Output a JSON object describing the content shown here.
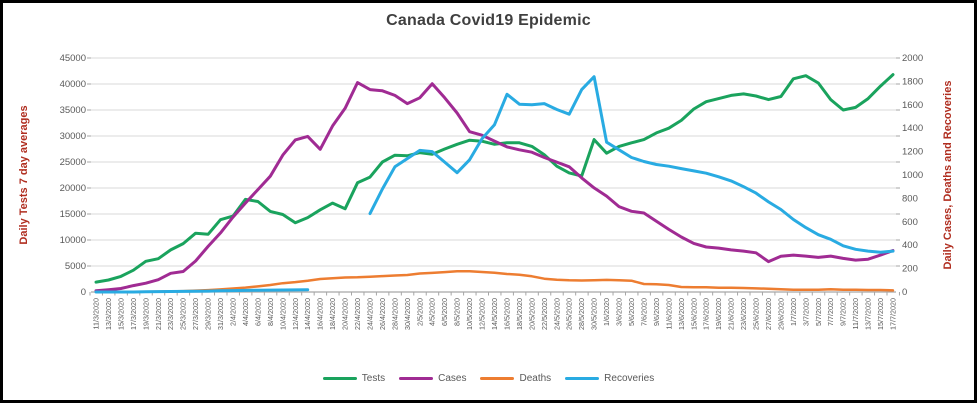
{
  "title": "Canada Covid19 Epidemic",
  "colors": {
    "title_text": "#3f3f3f",
    "axis_title_text": "#b02e20",
    "tick_label_text": "#595959",
    "gridline": "#d9d9d9",
    "axis_line": "#a6a6a6",
    "border": "#000000",
    "background": "#ffffff"
  },
  "chart_data": {
    "type": "line",
    "title": "Canada Covid19 Epidemic",
    "grid": true,
    "legend_position": "bottom",
    "left_axis": {
      "label": "Daily Tests 7 day averages",
      "min": 0,
      "max": 45000,
      "tick_step": 5000,
      "ticks": [
        "0",
        "5000",
        "10000",
        "15000",
        "20000",
        "25000",
        "30000",
        "35000",
        "40000",
        "45000"
      ]
    },
    "right_axis": {
      "label": "Daily Cases, Deaths and Recoveries",
      "min": 0,
      "max": 2000,
      "tick_step": 200,
      "ticks": [
        "0",
        "200",
        "400",
        "600",
        "800",
        "1000",
        "1200",
        "1400",
        "1600",
        "1800",
        "2000"
      ]
    },
    "x_labels": [
      "11/3/2020",
      "13/3/2020",
      "15/3/2020",
      "17/3/2020",
      "19/3/2020",
      "21/3/2020",
      "23/3/2020",
      "25/3/2020",
      "27/3/2020",
      "29/3/2020",
      "31/3/2020",
      "2/4/2020",
      "4/4/2020",
      "6/4/2020",
      "8/4/2020",
      "10/4/2020",
      "12/4/2020",
      "14/4/2020",
      "16/4/2020",
      "18/4/2020",
      "20/4/2020",
      "22/4/2020",
      "24/4/2020",
      "26/4/2020",
      "28/4/2020",
      "30/4/2020",
      "2/5/2020",
      "4/5/2020",
      "6/5/2020",
      "8/5/2020",
      "10/5/2020",
      "12/5/2020",
      "14/5/2020",
      "16/5/2020",
      "18/5/2020",
      "20/5/2020",
      "22/5/2020",
      "24/5/2020",
      "26/5/2020",
      "28/5/2020",
      "30/5/2020",
      "1/6/2020",
      "3/6/2020",
      "5/6/2020",
      "7/6/2020",
      "9/6/2020",
      "11/6/2020",
      "13/6/2020",
      "15/6/2020",
      "17/6/2020",
      "19/6/2020",
      "21/6/2020",
      "23/6/2020",
      "25/6/2020",
      "27/6/2020",
      "29/6/2020",
      "1/7/2020",
      "3/7/2020",
      "5/7/2020",
      "7/7/2020",
      "9/7/2020",
      "11/7/2020",
      "13/7/2020",
      "15/7/2020",
      "17/7/2020"
    ],
    "series": [
      {
        "name": "Tests",
        "axis": "left",
        "color": "#1aa35d",
        "width": 3,
        "values": [
          1900,
          2300,
          3000,
          4200,
          5900,
          6400,
          8100,
          9300,
          11300,
          11100,
          13900,
          14600,
          17800,
          17400,
          15500,
          14900,
          13300,
          14300,
          15800,
          17100,
          16000,
          21000,
          22100,
          25000,
          26300,
          26200,
          26800,
          26500,
          27500,
          28400,
          29200,
          29000,
          28400,
          28700,
          28700,
          28000,
          26400,
          24200,
          22900,
          22300,
          29300,
          26700,
          28000,
          28700,
          29300,
          30600,
          31500,
          33000,
          35200,
          36600,
          37200,
          37800,
          38100,
          37700,
          37000,
          37600,
          41000,
          41600,
          40200,
          37000,
          35000,
          35500,
          37200,
          39600,
          41800
        ]
      },
      {
        "name": "Cases",
        "axis": "right",
        "color": "#a02b93",
        "width": 3,
        "values": [
          10,
          20,
          30,
          55,
          75,
          105,
          160,
          175,
          265,
          390,
          505,
          640,
          760,
          875,
          990,
          1170,
          1300,
          1330,
          1220,
          1420,
          1570,
          1790,
          1730,
          1720,
          1680,
          1610,
          1660,
          1780,
          1660,
          1530,
          1370,
          1340,
          1290,
          1240,
          1215,
          1195,
          1150,
          1110,
          1070,
          975,
          890,
          820,
          730,
          690,
          675,
          605,
          535,
          470,
          415,
          385,
          375,
          360,
          350,
          335,
          260,
          305,
          315,
          307,
          296,
          307,
          287,
          273,
          280,
          315,
          355
        ]
      },
      {
        "name": "Deaths",
        "axis": "right",
        "color": "#ed7d31",
        "width": 2.5,
        "values": [
          1,
          1,
          1,
          2,
          2,
          3,
          5,
          8,
          12,
          16,
          22,
          30,
          38,
          48,
          60,
          75,
          85,
          97,
          111,
          117,
          124,
          126,
          131,
          136,
          141,
          145,
          158,
          163,
          170,
          177,
          177,
          171,
          165,
          154,
          148,
          134,
          114,
          105,
          100,
          98,
          100,
          103,
          100,
          97,
          68,
          66,
          60,
          43,
          40,
          40,
          37,
          37,
          34,
          31,
          28,
          23,
          20,
          20,
          20,
          23,
          20,
          19,
          17,
          17,
          14
        ]
      },
      {
        "name": "Recoveries",
        "axis": "right",
        "color": "#29abe2",
        "width": 3,
        "values": [
          0,
          0,
          0,
          0,
          2,
          3,
          4,
          5,
          6,
          8,
          10,
          12,
          14,
          15,
          16,
          17,
          18,
          19,
          null,
          null,
          null,
          null,
          670,
          880,
          1070,
          1140,
          1210,
          1200,
          1110,
          1020,
          1130,
          1310,
          1430,
          1690,
          1605,
          1600,
          1610,
          1560,
          1520,
          1730,
          1840,
          1280,
          1215,
          1150,
          1115,
          1090,
          1075,
          1055,
          1035,
          1015,
          985,
          950,
          900,
          845,
          770,
          705,
          620,
          550,
          490,
          450,
          395,
          365,
          350,
          340,
          350
        ]
      }
    ]
  }
}
